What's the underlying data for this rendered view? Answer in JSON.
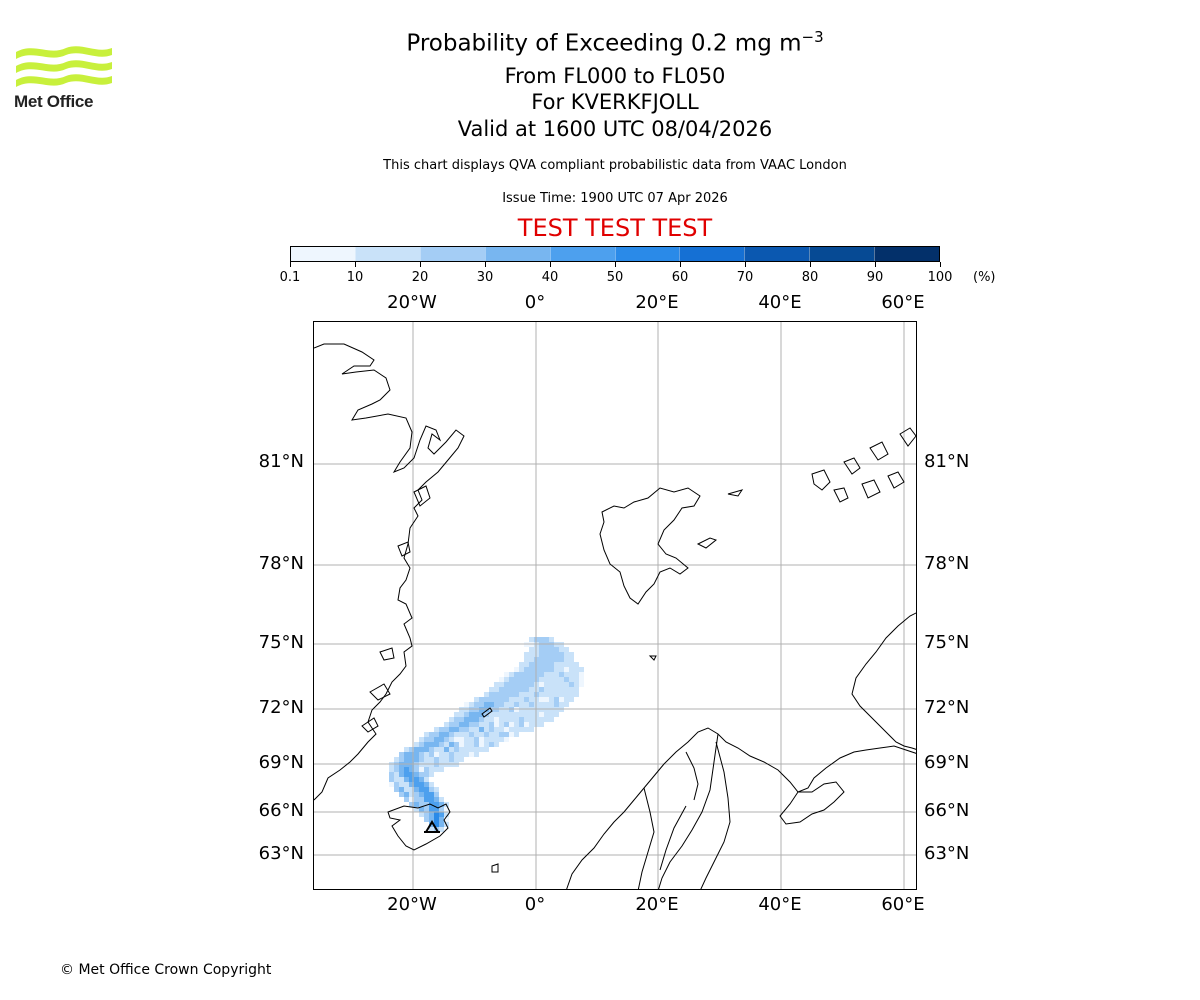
{
  "header": {
    "logo_text": "Met Office",
    "title": "Probability of Exceeding 0.2 mg m",
    "title_sup": "−3",
    "levels": "From FL000 to FL050",
    "volcano": "For KVERKFJOLL",
    "valid": "Valid at 1600 UTC 08/04/2026",
    "description": "This chart displays QVA compliant probabilistic data from VAAC London",
    "issue_time": "Issue Time: 1900 UTC 07 Apr 2026",
    "test_banner": "TEST TEST TEST"
  },
  "colorbar": {
    "labels": [
      "0.1",
      "10",
      "20",
      "30",
      "40",
      "50",
      "60",
      "70",
      "80",
      "90",
      "100"
    ],
    "colors": [
      "#eef6fe",
      "#c9e2f9",
      "#a4cdf5",
      "#78b6f0",
      "#4da0ee",
      "#2a8ae8",
      "#1570d4",
      "#0b58b0",
      "#064a94",
      "#03306a"
    ],
    "unit": "(%)"
  },
  "map": {
    "lon_labels_top": [
      "20°W",
      "0°",
      "20°E",
      "40°E",
      "60°E"
    ],
    "lon_labels_bottom": [
      "20°W",
      "0°",
      "20°E",
      "40°E",
      "60°E"
    ],
    "lat_labels": [
      "81°N",
      "78°N",
      "75°N",
      "72°N",
      "69°N",
      "66°N",
      "63°N"
    ]
  },
  "footer": {
    "copyright": "© Met Office Crown Copyright"
  }
}
